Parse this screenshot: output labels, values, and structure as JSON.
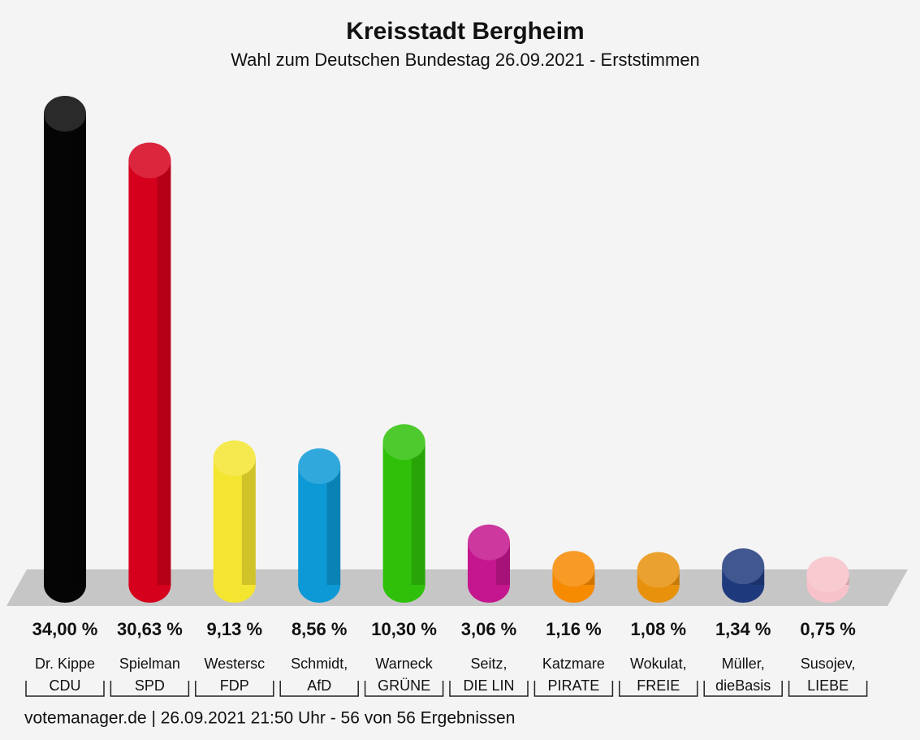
{
  "chart_data": {
    "type": "bar",
    "title": "Kreisstadt Bergheim",
    "subtitle": "Wahl zum Deutschen Bundestag 26.09.2021  - Erststimmen",
    "categories": [
      "Dr. Kippe",
      "Spielman",
      "Westersc",
      "Schmidt,",
      "Warneck",
      "Seitz,",
      "Katzmare",
      "Wokulat,",
      "Müller,",
      "Susojev,"
    ],
    "parties": [
      "CDU",
      "SPD",
      "FDP",
      "AfD",
      "GRÜNE",
      "DIE LIN",
      "PIRATE",
      "FREIE",
      "dieBasis",
      "LIEBE"
    ],
    "values": [
      34.0,
      30.63,
      9.13,
      8.56,
      10.3,
      3.06,
      1.16,
      1.08,
      1.34,
      0.75
    ],
    "value_labels": [
      "34,00 %",
      "30,63 %",
      "9,13 %",
      "8,56 %",
      "10,30 %",
      "3,06 %",
      "1,16 %",
      "1,08 %",
      "1,34 %",
      "0,75 %"
    ],
    "colors": [
      "#050505",
      "#d5001c",
      "#f4e531",
      "#0d99d6",
      "#2fc10a",
      "#c4168e",
      "#f68a00",
      "#e8910c",
      "#1f3a7c",
      "#f7c2c9"
    ],
    "footer": "votemanager.de | 26.09.2021 21:50 Uhr - 56 von 56 Ergebnissen"
  }
}
